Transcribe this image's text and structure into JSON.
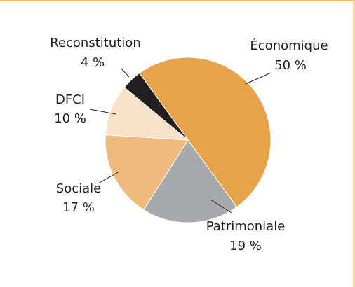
{
  "chart_data": {
    "type": "pie",
    "categories": [
      "Économique",
      "Patrimoniale",
      "Sociale",
      "DFCI",
      "Reconstitution"
    ],
    "values": [
      50,
      19,
      17,
      10,
      4
    ],
    "value_labels": [
      "50 %",
      "19 %",
      "17 %",
      "10 %",
      "4 %"
    ],
    "colors": [
      "#e8a24a",
      "#a7a9ac",
      "#efbb7c",
      "#f9e1c8",
      "#231f20"
    ]
  }
}
